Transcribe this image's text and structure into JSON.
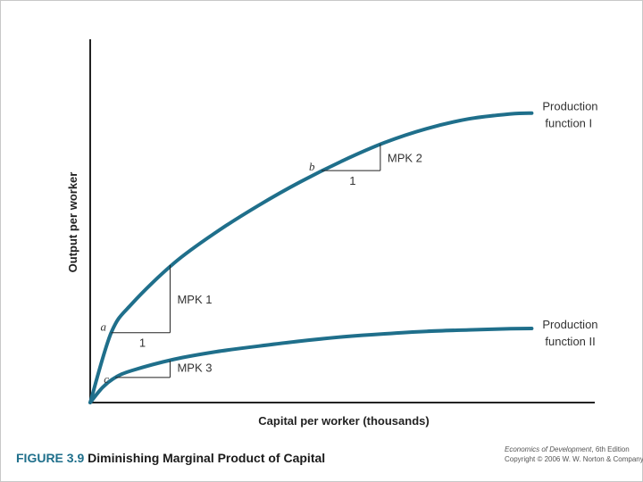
{
  "figure": {
    "number": "FIGURE 3.9",
    "title": "Diminishing Marginal Product of Capital",
    "credit_book": "Economics of Development",
    "credit_edition": ", 6th Edition",
    "credit_copyright": "Copyright © 2006 W. W. Norton & Company"
  },
  "chart_data": {
    "type": "line",
    "title": "",
    "xlabel": "Capital per worker (thousands)",
    "ylabel": "Output per worker",
    "grid": false,
    "series": [
      {
        "name": "Production function I",
        "label_lines": [
          "Production",
          "function I"
        ],
        "color": "#1f6f8b",
        "points": [
          [
            0,
            0
          ],
          [
            0.5,
            2.5
          ],
          [
            1,
            3.55
          ],
          [
            2,
            5.0
          ],
          [
            3,
            6.1
          ],
          [
            4,
            7.05
          ],
          [
            5,
            7.9
          ],
          [
            6,
            8.65
          ],
          [
            7,
            9.3
          ],
          [
            8,
            9.8
          ],
          [
            9,
            10.15
          ],
          [
            10,
            10.33
          ],
          [
            10.5,
            10.36
          ]
        ]
      },
      {
        "name": "Production function II",
        "label_lines": [
          "Production",
          "function II"
        ],
        "color": "#1f6f8b",
        "points": [
          [
            0,
            0
          ],
          [
            0.3,
            0.55
          ],
          [
            0.6,
            0.9
          ],
          [
            1,
            1.15
          ],
          [
            2,
            1.55
          ],
          [
            3,
            1.82
          ],
          [
            4,
            2.02
          ],
          [
            5,
            2.2
          ],
          [
            6,
            2.35
          ],
          [
            7,
            2.46
          ],
          [
            8,
            2.55
          ],
          [
            9,
            2.6
          ],
          [
            10,
            2.64
          ],
          [
            10.5,
            2.65
          ]
        ]
      }
    ],
    "annotations": [
      {
        "label": "a",
        "x": 0.5,
        "y": 2.5
      },
      {
        "label": "b",
        "x": 5.5,
        "y": 8.3
      },
      {
        "label": "c",
        "x": 0.6,
        "y": 0.9
      }
    ],
    "slope_triangles": [
      {
        "run_label": "1",
        "rise_label": "MPK 1",
        "x0": 0.5,
        "x1": 1.9,
        "y0": 2.5,
        "y1": 4.92
      },
      {
        "run_label": "1",
        "rise_label": "MPK 2",
        "x0": 5.5,
        "x1": 6.9,
        "y0": 8.3,
        "y1": 9.25
      },
      {
        "run_label": "",
        "rise_label": "MPK 3",
        "x0": 0.6,
        "x1": 1.9,
        "y0": 0.9,
        "y1": 1.5
      }
    ],
    "xlim": [
      0,
      12
    ],
    "ylim": [
      0,
      13
    ]
  }
}
